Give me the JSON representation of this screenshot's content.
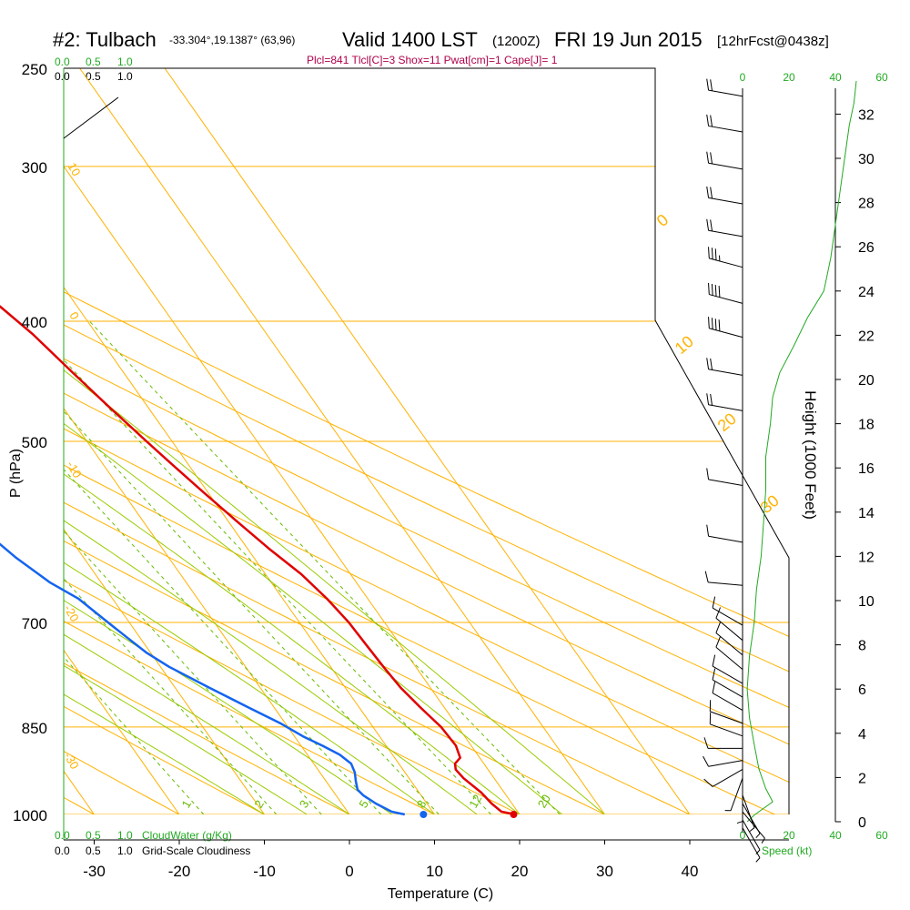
{
  "title": {
    "station": "#2: Tulbach",
    "coords": "-33.304°,19.1387° (63,96)",
    "valid": "Valid 1400 LST",
    "valid_z": "(1200Z)",
    "date": "FRI 19 Jun 2015",
    "fcst": "[12hrFcst@0438z]"
  },
  "subtitle": "Plcl=841 Tlcl[C]=3 Shox=11 Pwat[cm]=1 Cape[J]= 1",
  "chart_data": {
    "type": "line",
    "title": "#2: Tulbach",
    "xlabel": "Temperature (C)",
    "ylabel": "P (hPa)",
    "y2label": "Height (1000 Feet)",
    "xlim": [
      -35,
      45
    ],
    "pressure_ticks": [
      "250",
      "300",
      "400",
      "500",
      "700",
      "850",
      "1000"
    ],
    "pressure_values": [
      250,
      300,
      400,
      500,
      700,
      850,
      1000
    ],
    "temp_ticks": [
      "-30",
      "-20",
      "-10",
      "0",
      "10",
      "20",
      "30",
      "40"
    ],
    "temp_values": [
      -30,
      -20,
      -10,
      0,
      10,
      20,
      30,
      40
    ],
    "height_ticks": [
      "0",
      "2",
      "4",
      "6",
      "8",
      "10",
      "12",
      "14",
      "16",
      "18",
      "20",
      "22",
      "24",
      "26",
      "28",
      "30",
      "32"
    ],
    "height_values": [
      0,
      2,
      4,
      6,
      8,
      10,
      12,
      14,
      16,
      18,
      20,
      22,
      24,
      26,
      28,
      30,
      32
    ],
    "series": [
      {
        "name": "temperature",
        "color": "#e00000",
        "points": [
          [
            19.5,
            1000
          ],
          [
            18.1,
            995
          ],
          [
            17.6,
            980
          ],
          [
            17.3,
            960
          ],
          [
            16.4,
            935
          ],
          [
            16.2,
            920
          ],
          [
            16.6,
            910
          ],
          [
            17.7,
            900
          ],
          [
            18.2,
            880
          ],
          [
            18.0,
            850
          ],
          [
            17.2,
            820
          ],
          [
            16.5,
            790
          ],
          [
            16.2,
            760
          ],
          [
            16.0,
            730
          ],
          [
            15.8,
            700
          ],
          [
            15.2,
            670
          ],
          [
            14.2,
            640
          ],
          [
            12.5,
            610
          ],
          [
            11.0,
            580
          ],
          [
            9.5,
            550
          ],
          [
            8.0,
            520
          ],
          [
            7.0,
            500
          ],
          [
            5.5,
            470
          ],
          [
            4.0,
            440
          ],
          [
            2.5,
            410
          ],
          [
            1.0,
            390
          ],
          [
            -1.5,
            360
          ],
          [
            -4.0,
            330
          ],
          [
            -6.0,
            310
          ],
          [
            -8.0,
            290
          ],
          [
            -10.0,
            275
          ],
          [
            -11.5,
            262
          ]
        ]
      },
      {
        "name": "dewpoint",
        "color": "#1464f0",
        "points": [
          [
            6.5,
            1000
          ],
          [
            5.2,
            995
          ],
          [
            4.0,
            980
          ],
          [
            3.2,
            965
          ],
          [
            3.0,
            955
          ],
          [
            3.5,
            940
          ],
          [
            4.1,
            925
          ],
          [
            4.4,
            910
          ],
          [
            3.8,
            895
          ],
          [
            2.5,
            880
          ],
          [
            1.0,
            865
          ],
          [
            -0.5,
            845
          ],
          [
            -3.0,
            820
          ],
          [
            -6.0,
            790
          ],
          [
            -9.0,
            760
          ],
          [
            -10.5,
            740
          ],
          [
            -11.5,
            720
          ],
          [
            -12.5,
            700
          ],
          [
            -14.0,
            670
          ],
          [
            -16.0,
            650
          ],
          [
            -18.0,
            620
          ],
          [
            -20.0,
            580
          ],
          [
            -22.0,
            540
          ],
          [
            -24.0,
            500
          ],
          [
            -26.5,
            470
          ],
          [
            -27.5,
            450
          ],
          [
            -26.5,
            430
          ],
          [
            -25.5,
            410
          ],
          [
            -24.0,
            398
          ],
          [
            -21.0,
            380
          ],
          [
            -17.5,
            360
          ],
          [
            -14.0,
            345
          ],
          [
            -11.5,
            332
          ],
          [
            -9.5,
            320
          ],
          [
            -8.0,
            307
          ],
          [
            -6.5,
            290
          ],
          [
            -5.5,
            280
          ],
          [
            -5.8,
            268
          ],
          [
            -6.3,
            262
          ]
        ]
      }
    ],
    "markers": [
      {
        "name": "surface-dewpoint",
        "temp": 8.7,
        "pres": 1000,
        "color": "#1464f0"
      },
      {
        "name": "surface-temperature",
        "temp": 19.3,
        "pres": 1000,
        "color": "#e00000"
      }
    ],
    "isotherm_temps": [
      -130,
      -120,
      -110,
      -100,
      -90,
      -80,
      -70,
      -60,
      -50,
      -40,
      -30,
      -20,
      -10,
      0,
      10,
      20,
      30,
      40
    ],
    "dry_adiabat_thetas": [
      -30,
      -20,
      -10,
      0,
      10,
      20,
      30,
      40,
      50,
      60,
      70,
      80,
      90,
      100
    ],
    "dry_adiabat_labels": [
      "10",
      "0",
      "-10",
      "-20",
      "-30",
      "0",
      "10",
      "20",
      "30"
    ],
    "moist_adiabat_thetaw": [
      -10,
      -5,
      0,
      5,
      10,
      15,
      20,
      25,
      30
    ],
    "mixing_ratios": [
      1,
      2,
      3,
      5,
      8,
      12,
      20
    ],
    "mixing_ratio_labels": [
      "1",
      "2",
      "3",
      "5",
      "8",
      "12",
      "20"
    ],
    "cloud_scale_top": [
      "0.0",
      "0.5",
      "1.0"
    ],
    "cloud_scale_top2": [
      "0.0",
      "0.5",
      "1.0"
    ],
    "cloud_water_label": "CloudWater (g/Kg)",
    "grid_cloud_label": "Grid-Scale Cloudiness",
    "wind_speed_label": "Speed (kt)",
    "wind_speed_ticks": [
      "0",
      "20",
      "40",
      "60"
    ],
    "wind_speed_values": [
      0,
      20,
      40,
      60
    ],
    "wind_speed_profile": [
      [
        2,
        0
      ],
      [
        5,
        0.3
      ],
      [
        13,
        0.9
      ],
      [
        10,
        1.5
      ],
      [
        7,
        2.4
      ],
      [
        5,
        3.5
      ],
      [
        3,
        4.7
      ],
      [
        2,
        6.0
      ],
      [
        3,
        7.5
      ],
      [
        5,
        9.0
      ],
      [
        6,
        10.5
      ],
      [
        8,
        12.0
      ],
      [
        9,
        13.5
      ],
      [
        10,
        15.0
      ],
      [
        10,
        16.5
      ],
      [
        12,
        18.0
      ],
      [
        13,
        19.2
      ],
      [
        16,
        20.3
      ],
      [
        22,
        21.5
      ],
      [
        28,
        22.8
      ],
      [
        35,
        24.0
      ],
      [
        38,
        25.5
      ],
      [
        40,
        27.0
      ],
      [
        42,
        28.5
      ],
      [
        44,
        30.0
      ],
      [
        46,
        31.5
      ],
      [
        48,
        32.5
      ],
      [
        49,
        33.5
      ]
    ],
    "wind_barbs": [
      {
        "pres": 262,
        "dir": 280,
        "speed": 20
      },
      {
        "pres": 280,
        "dir": 280,
        "speed": 20
      },
      {
        "pres": 300,
        "dir": 280,
        "speed": 20
      },
      {
        "pres": 320,
        "dir": 280,
        "speed": 20
      },
      {
        "pres": 340,
        "dir": 280,
        "speed": 20
      },
      {
        "pres": 360,
        "dir": 285,
        "speed": 35
      },
      {
        "pres": 385,
        "dir": 285,
        "speed": 40
      },
      {
        "pres": 410,
        "dir": 285,
        "speed": 40
      },
      {
        "pres": 440,
        "dir": 280,
        "speed": 20
      },
      {
        "pres": 470,
        "dir": 280,
        "speed": 20
      },
      {
        "pres": 540,
        "dir": 280,
        "speed": 10
      },
      {
        "pres": 600,
        "dir": 280,
        "speed": 10
      },
      {
        "pres": 650,
        "dir": 275,
        "speed": 10
      },
      {
        "pres": 700,
        "dir": 300,
        "speed": 10
      },
      {
        "pres": 720,
        "dir": 310,
        "speed": 10
      },
      {
        "pres": 740,
        "dir": 310,
        "speed": 10
      },
      {
        "pres": 760,
        "dir": 310,
        "speed": 10
      },
      {
        "pres": 780,
        "dir": 300,
        "speed": 10
      },
      {
        "pres": 800,
        "dir": 300,
        "speed": 10
      },
      {
        "pres": 820,
        "dir": 300,
        "speed": 10
      },
      {
        "pres": 840,
        "dir": 290,
        "speed": 10
      },
      {
        "pres": 860,
        "dir": 290,
        "speed": 10
      },
      {
        "pres": 880,
        "dir": 270,
        "speed": 10
      },
      {
        "pres": 900,
        "dir": 260,
        "speed": 10
      },
      {
        "pres": 915,
        "dir": 240,
        "speed": 10
      },
      {
        "pres": 930,
        "dir": 200,
        "speed": 5
      },
      {
        "pres": 945,
        "dir": 180,
        "speed": 5
      },
      {
        "pres": 960,
        "dir": 160,
        "speed": 5
      },
      {
        "pres": 975,
        "dir": 150,
        "speed": 5
      },
      {
        "pres": 990,
        "dir": 140,
        "speed": 5
      },
      {
        "pres": 1005,
        "dir": 150,
        "speed": 5
      },
      {
        "pres": 1020,
        "dir": 150,
        "speed": 5
      }
    ],
    "colors": {
      "isobar": "#ffb200",
      "isotherm": "#ffb200",
      "dry_adiabat": "#ffb200",
      "moist_adiabat": "#99cc00",
      "mixing_ratio": "#66bb00",
      "green_text": "#22aa22",
      "subtitle": "#b0004a"
    }
  }
}
